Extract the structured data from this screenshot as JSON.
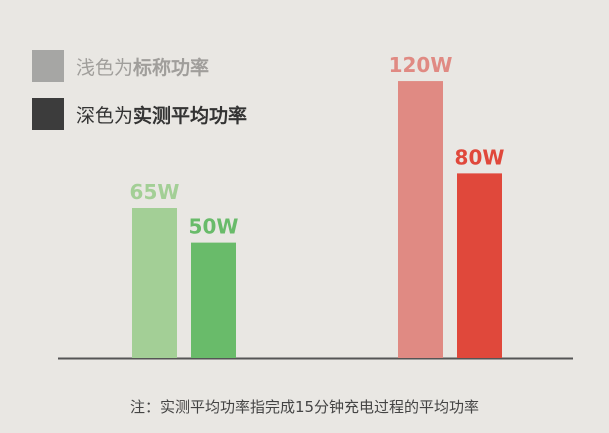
{
  "legend": [
    {
      "prefix": "浅色为",
      "bold": "标称功率",
      "color": "#a6a6a4",
      "style": "light"
    },
    {
      "prefix": "深色为",
      "bold": "实测平均功率",
      "color": "#3c3c3c",
      "style": "dark"
    }
  ],
  "note": "注：实测平均功率指完成15分钟充电过程的平均功率",
  "colors": {
    "green_light": "#a3cf96",
    "green_dark": "#69bb6a",
    "red_light": "#e08a83",
    "red_dark": "#e0483b",
    "axis": "#555555"
  },
  "chart_data": {
    "type": "bar",
    "ylim": [
      0,
      130
    ],
    "groups": [
      {
        "bars": [
          {
            "label": "65W",
            "value": 65,
            "kind": "nominal",
            "color": "#a3cf96",
            "label_color": "#a3cf96"
          },
          {
            "label": "50W",
            "value": 50,
            "kind": "measured",
            "color": "#69bb6a",
            "label_color": "#69bb6a"
          }
        ]
      },
      {
        "bars": [
          {
            "label": "120W",
            "value": 120,
            "kind": "nominal",
            "color": "#e08a83",
            "label_color": "#e08a83"
          },
          {
            "label": "80W",
            "value": 80,
            "kind": "measured",
            "color": "#e0483b",
            "label_color": "#e0483b"
          }
        ]
      }
    ]
  }
}
